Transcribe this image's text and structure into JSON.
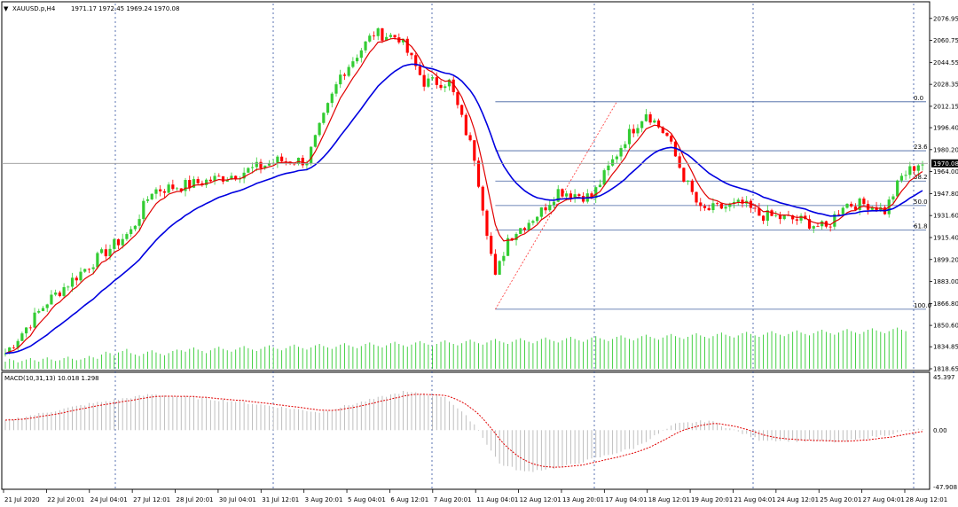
{
  "chart_data": {
    "type": "candlestick",
    "title": "XAUUSD.p,H4",
    "ohlc_text": "1971.17 1972.45 1969.24 1970.08",
    "current_price_label": "1970.08",
    "price_axis": {
      "ylim": [
        1818.65,
        2084.0
      ],
      "ticks": [
        "2076.95",
        "2060.75",
        "2044.55",
        "2028.35",
        "2012.15",
        "1996.40",
        "1980.20",
        "1964.00",
        "1947.80",
        "1931.60",
        "1915.40",
        "1899.20",
        "1883.00",
        "1866.80",
        "1850.60",
        "1834.85",
        "1818.65"
      ]
    },
    "time_labels": [
      "21 Jul 2020",
      "22 Jul 20:01",
      "24 Jul 04:01",
      "27 Jul 12:01",
      "28 Jul 20:01",
      "30 Jul 04:01",
      "31 Jul 12:01",
      "3 Aug 20:01",
      "5 Aug 04:01",
      "6 Aug 12:01",
      "7 Aug 20:01",
      "11 Aug 04:01",
      "12 Aug 12:01",
      "13 Aug 20:01",
      "17 Aug 04:01",
      "18 Aug 12:01",
      "19 Aug 20:01",
      "21 Aug 04:01",
      "24 Aug 12:01",
      "25 Aug 20:01",
      "27 Aug 04:01",
      "28 Aug 12:01"
    ],
    "fibonacci": {
      "high": 2015.5,
      "low": 1862.5,
      "levels": [
        {
          "label": "0.0",
          "ratio": 0.0
        },
        {
          "label": "23.6",
          "ratio": 0.236
        },
        {
          "label": "38.2",
          "ratio": 0.382
        },
        {
          "label": "50.0",
          "ratio": 0.5
        },
        {
          "label": "61.8",
          "ratio": 0.618
        },
        {
          "label": "100.0",
          "ratio": 1.0
        }
      ]
    },
    "macd": {
      "label": "MACD(10,31,13) 10.018 1.298",
      "ticks": [
        "45.397",
        "0.00",
        "-47.908"
      ],
      "ylim": [
        -47.908,
        45.397
      ]
    },
    "series": [
      {
        "name": "price",
        "anchors": [
          [
            0,
            1830
          ],
          [
            10,
            1868
          ],
          [
            20,
            1895
          ],
          [
            30,
            1920
          ],
          [
            35,
            1950
          ],
          [
            45,
            1955
          ],
          [
            55,
            1962
          ],
          [
            65,
            1972
          ],
          [
            72,
            1972
          ],
          [
            80,
            2035
          ],
          [
            88,
            2066
          ],
          [
            94,
            2063
          ],
          [
            100,
            2030
          ],
          [
            106,
            2030
          ],
          [
            112,
            1975
          ],
          [
            117,
            1885
          ],
          [
            120,
            1915
          ],
          [
            128,
            1935
          ],
          [
            132,
            1950
          ],
          [
            140,
            1945
          ],
          [
            148,
            1988
          ],
          [
            153,
            2008
          ],
          [
            158,
            1990
          ],
          [
            162,
            1960
          ],
          [
            166,
            1935
          ],
          [
            176,
            1940
          ],
          [
            180,
            1932
          ],
          [
            190,
            1928
          ],
          [
            196,
            1922
          ],
          [
            200,
            1940
          ],
          [
            206,
            1940
          ],
          [
            210,
            1935
          ],
          [
            214,
            1960
          ],
          [
            218,
            1970
          ]
        ]
      },
      {
        "name": "volume",
        "values": [
          10,
          14,
          12,
          9,
          11,
          13,
          15,
          12,
          10,
          14,
          16,
          13,
          11,
          12,
          15,
          17,
          14,
          12,
          13,
          15,
          18,
          16,
          14,
          20,
          24,
          22,
          19,
          23,
          25,
          28,
          22,
          20,
          18,
          21,
          24,
          26,
          23,
          21,
          19,
          22,
          25,
          27,
          26,
          24,
          28,
          30,
          27,
          25,
          22,
          26,
          29,
          31,
          28,
          26,
          24,
          27,
          30,
          32,
          29,
          27,
          25,
          28,
          31,
          33,
          30,
          28,
          26,
          29,
          32,
          34,
          31,
          29,
          27,
          30,
          33,
          35,
          32,
          30,
          28,
          31,
          34,
          36,
          33,
          31,
          29,
          32,
          35,
          37,
          34,
          32,
          30,
          33,
          36,
          38,
          35,
          33,
          31,
          34,
          37,
          39,
          36,
          34,
          32,
          35,
          38,
          40,
          37,
          35,
          33,
          36,
          39,
          41,
          38,
          36,
          34,
          37,
          40,
          42,
          39,
          37,
          35,
          38,
          41,
          43,
          40,
          38,
          36,
          39,
          42,
          44,
          41,
          39,
          37,
          40,
          43,
          45,
          42,
          40,
          38,
          41,
          44,
          46,
          43,
          41,
          39,
          42,
          45,
          47,
          44,
          42,
          40,
          43,
          46,
          48,
          45,
          43,
          41,
          44,
          47,
          49,
          46,
          44,
          42,
          45,
          48,
          50,
          47,
          45,
          43,
          46,
          49,
          51,
          48,
          46,
          44,
          47,
          50,
          52,
          49,
          47,
          45,
          48,
          51,
          53,
          50,
          48,
          46,
          49,
          52,
          54,
          51,
          49,
          47,
          50,
          53,
          55,
          52,
          50,
          48,
          51,
          54,
          56,
          53,
          51,
          49,
          52,
          55,
          57,
          54,
          52,
          50,
          53,
          56,
          58,
          55,
          53
        ]
      },
      {
        "name": "macd_line",
        "anchors": [
          [
            0,
            8
          ],
          [
            20,
            22
          ],
          [
            35,
            30
          ],
          [
            55,
            24
          ],
          [
            75,
            15
          ],
          [
            95,
            32
          ],
          [
            105,
            28
          ],
          [
            112,
            5
          ],
          [
            118,
            -28
          ],
          [
            124,
            -35
          ],
          [
            134,
            -30
          ],
          [
            150,
            -15
          ],
          [
            160,
            5
          ],
          [
            168,
            8
          ],
          [
            180,
            -8
          ],
          [
            200,
            -10
          ],
          [
            220,
            2
          ]
        ]
      }
    ],
    "grid": true
  }
}
